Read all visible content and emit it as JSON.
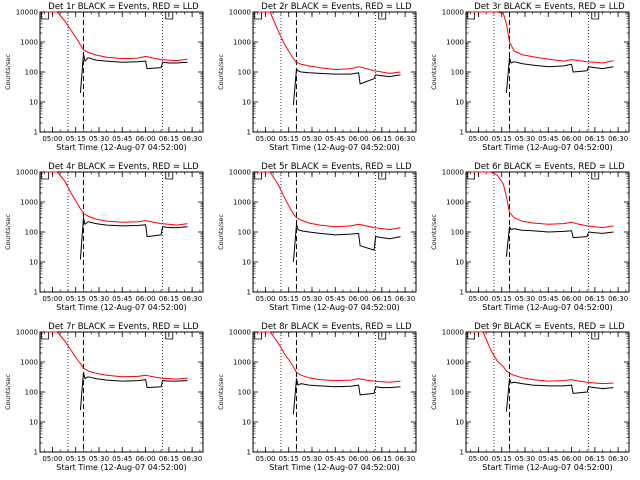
{
  "chart_data": [
    {
      "type": "line",
      "title": "Det 1r BLACK = Events, RED = LLD",
      "xlabel": "Start Time (12-Aug-07 04:52:00)",
      "ylabel": "Counts/sec",
      "yscale": "log",
      "ylim": [
        1,
        10000
      ],
      "x_ticks": [
        "05:00",
        "05:15",
        "05:30",
        "05:45",
        "06:00",
        "06:15",
        "06:30"
      ],
      "y_ticks": [
        "1",
        "10",
        "100",
        "1000",
        "10000"
      ],
      "markers": {
        "dotted": [
          "05:10",
          "06:11"
        ],
        "dashed": [
          "05:20"
        ]
      },
      "series": [
        {
          "color": "#ff0000",
          "x": [
            "04:55",
            "05:03",
            "05:08",
            "05:12",
            "05:16",
            "05:18",
            "05:20",
            "05:23",
            "05:28",
            "05:35",
            "05:45",
            "05:55",
            "06:00",
            "06:05",
            "06:10",
            "06:15",
            "06:20",
            "06:27"
          ],
          "values": [
            10000,
            10000,
            5000,
            2500,
            1200,
            800,
            550,
            450,
            370,
            310,
            280,
            290,
            330,
            290,
            260,
            250,
            240,
            270
          ]
        },
        {
          "color": "#000000",
          "x": [
            "05:18",
            "05:20",
            "05:21",
            "05:23",
            "05:28",
            "05:35",
            "05:45",
            "05:55",
            "06:00",
            "06:01",
            "06:10",
            "06:11",
            "06:15",
            "06:20",
            "06:27"
          ],
          "values": [
            20,
            400,
            230,
            300,
            250,
            230,
            210,
            220,
            230,
            130,
            140,
            210,
            200,
            200,
            210
          ]
        }
      ]
    },
    {
      "type": "line",
      "title": "Det 2r BLACK = Events, RED = LLD",
      "xlabel": "Start Time (12-Aug-07 04:52:00)",
      "ylabel": "Counts/sec",
      "yscale": "log",
      "ylim": [
        1,
        10000
      ],
      "x_ticks": [
        "05:00",
        "05:15",
        "05:30",
        "05:45",
        "06:00",
        "06:15",
        "06:30"
      ],
      "y_ticks": [
        "1",
        "10",
        "100",
        "1000",
        "10000"
      ],
      "markers": {
        "dotted": [
          "05:10",
          "06:11"
        ],
        "dashed": [
          "05:20"
        ]
      },
      "series": [
        {
          "color": "#ff0000",
          "x": [
            "04:55",
            "05:03",
            "05:08",
            "05:12",
            "05:16",
            "05:18",
            "05:20",
            "05:23",
            "05:28",
            "05:35",
            "05:45",
            "05:55",
            "06:00",
            "06:05",
            "06:10",
            "06:15",
            "06:20",
            "06:27"
          ],
          "values": [
            10000,
            10000,
            2500,
            900,
            400,
            280,
            210,
            180,
            160,
            140,
            120,
            130,
            150,
            130,
            110,
            100,
            90,
            100
          ]
        },
        {
          "color": "#000000",
          "x": [
            "05:18",
            "05:20",
            "05:21",
            "05:23",
            "05:28",
            "05:35",
            "05:45",
            "05:55",
            "06:00",
            "06:01",
            "06:10",
            "06:11",
            "06:15",
            "06:20",
            "06:27"
          ],
          "values": [
            8,
            130,
            110,
            100,
            95,
            90,
            85,
            85,
            95,
            40,
            60,
            80,
            75,
            70,
            80
          ]
        }
      ]
    },
    {
      "type": "line",
      "title": "Det 3r BLACK = Events, RED = LLD",
      "xlabel": "Start Time (12-Aug-07 04:52:00)",
      "ylabel": "Counts/sec",
      "yscale": "log",
      "ylim": [
        1,
        10000
      ],
      "x_ticks": [
        "05:00",
        "05:15",
        "05:30",
        "05:45",
        "06:00",
        "06:15",
        "06:30"
      ],
      "y_ticks": [
        "1",
        "10",
        "100",
        "1000",
        "10000"
      ],
      "markers": {
        "dotted": [
          "05:10",
          "06:11"
        ],
        "dashed": [
          "05:20"
        ]
      },
      "series": [
        {
          "color": "#ff0000",
          "x": [
            "04:55",
            "05:03",
            "05:08",
            "05:12",
            "05:16",
            "05:18",
            "05:20",
            "05:23",
            "05:28",
            "05:35",
            "05:45",
            "05:55",
            "06:00",
            "06:05",
            "06:10",
            "06:15",
            "06:20",
            "06:27"
          ],
          "values": [
            10000,
            10000,
            10000,
            10000,
            9000,
            4000,
            1000,
            500,
            380,
            320,
            270,
            230,
            260,
            240,
            220,
            210,
            200,
            240
          ]
        },
        {
          "color": "#000000",
          "x": [
            "05:18",
            "05:20",
            "05:21",
            "05:23",
            "05:28",
            "05:35",
            "05:45",
            "05:55",
            "06:00",
            "06:01",
            "06:10",
            "06:11",
            "06:15",
            "06:20",
            "06:27"
          ],
          "values": [
            20,
            300,
            200,
            220,
            190,
            170,
            150,
            160,
            180,
            100,
            110,
            150,
            140,
            130,
            150
          ]
        }
      ]
    },
    {
      "type": "line",
      "title": "Det 4r BLACK = Events, RED = LLD",
      "xlabel": "Start Time (12-Aug-07 04:52:00)",
      "ylabel": "Counts/sec",
      "yscale": "log",
      "ylim": [
        1,
        10000
      ],
      "x_ticks": [
        "05:00",
        "05:15",
        "05:30",
        "05:45",
        "06:00",
        "06:15",
        "06:30"
      ],
      "y_ticks": [
        "1",
        "10",
        "100",
        "1000",
        "10000"
      ],
      "markers": {
        "dotted": [
          "05:10",
          "06:11"
        ],
        "dashed": [
          "05:20"
        ]
      },
      "series": [
        {
          "color": "#ff0000",
          "x": [
            "04:55",
            "05:03",
            "05:08",
            "05:12",
            "05:16",
            "05:18",
            "05:20",
            "05:23",
            "05:28",
            "05:35",
            "05:45",
            "05:55",
            "06:00",
            "06:05",
            "06:10",
            "06:15",
            "06:20",
            "06:27"
          ],
          "values": [
            10000,
            10000,
            5000,
            2000,
            900,
            600,
            420,
            340,
            270,
            230,
            210,
            220,
            240,
            210,
            190,
            180,
            170,
            190
          ]
        },
        {
          "color": "#000000",
          "x": [
            "05:18",
            "05:20",
            "05:21",
            "05:23",
            "05:28",
            "05:35",
            "05:45",
            "05:55",
            "06:00",
            "06:01",
            "06:10",
            "06:11",
            "06:15",
            "06:20",
            "06:27"
          ],
          "values": [
            12,
            300,
            180,
            220,
            190,
            170,
            160,
            165,
            175,
            70,
            80,
            150,
            140,
            140,
            150
          ]
        }
      ]
    },
    {
      "type": "line",
      "title": "Det 5r BLACK = Events, RED = LLD",
      "xlabel": "Start Time (12-Aug-07 04:52:00)",
      "ylabel": "Counts/sec",
      "yscale": "log",
      "ylim": [
        1,
        10000
      ],
      "x_ticks": [
        "05:00",
        "05:15",
        "05:30",
        "05:45",
        "06:00",
        "06:15",
        "06:30"
      ],
      "y_ticks": [
        "1",
        "10",
        "100",
        "1000",
        "10000"
      ],
      "markers": {
        "dotted": [
          "05:10",
          "06:11"
        ],
        "dashed": [
          "05:20"
        ]
      },
      "series": [
        {
          "color": "#ff0000",
          "x": [
            "04:55",
            "05:03",
            "05:08",
            "05:12",
            "05:16",
            "05:18",
            "05:20",
            "05:23",
            "05:28",
            "05:35",
            "05:45",
            "05:55",
            "06:00",
            "06:05",
            "06:10",
            "06:15",
            "06:20",
            "06:27"
          ],
          "values": [
            10000,
            10000,
            4000,
            1500,
            600,
            400,
            300,
            250,
            200,
            170,
            150,
            160,
            180,
            160,
            140,
            130,
            120,
            140
          ]
        },
        {
          "color": "#000000",
          "x": [
            "05:18",
            "05:20",
            "05:21",
            "05:23",
            "05:28",
            "05:35",
            "05:45",
            "05:55",
            "06:00",
            "06:01",
            "06:10",
            "06:11",
            "06:15",
            "06:20",
            "06:27"
          ],
          "values": [
            10,
            180,
            120,
            110,
            100,
            90,
            80,
            85,
            90,
            35,
            25,
            70,
            65,
            60,
            70
          ]
        }
      ]
    },
    {
      "type": "line",
      "title": "Det 6r BLACK = Events, RED = LLD",
      "xlabel": "Start Time (12-Aug-07 04:52:00)",
      "ylabel": "Counts/sec",
      "yscale": "log",
      "ylim": [
        1,
        10000
      ],
      "x_ticks": [
        "05:00",
        "05:15",
        "05:30",
        "05:45",
        "06:00",
        "06:15",
        "06:30"
      ],
      "y_ticks": [
        "1",
        "10",
        "100",
        "1000",
        "10000"
      ],
      "markers": {
        "dotted": [
          "05:10",
          "06:11"
        ],
        "dashed": [
          "05:20"
        ]
      },
      "series": [
        {
          "color": "#ff0000",
          "x": [
            "04:55",
            "05:03",
            "05:08",
            "05:12",
            "05:16",
            "05:18",
            "05:20",
            "05:23",
            "05:28",
            "05:35",
            "05:45",
            "05:55",
            "06:00",
            "06:05",
            "06:10",
            "06:15",
            "06:20",
            "06:27"
          ],
          "values": [
            10000,
            10000,
            10000,
            8000,
            4000,
            1500,
            450,
            300,
            230,
            200,
            180,
            190,
            210,
            180,
            160,
            150,
            140,
            160
          ]
        },
        {
          "color": "#000000",
          "x": [
            "05:18",
            "05:20",
            "05:21",
            "05:23",
            "05:28",
            "05:35",
            "05:45",
            "05:55",
            "06:00",
            "06:01",
            "06:10",
            "06:11",
            "06:15",
            "06:20",
            "06:27"
          ],
          "values": [
            15,
            150,
            120,
            130,
            115,
            110,
            100,
            105,
            110,
            65,
            70,
            100,
            95,
            90,
            100
          ]
        }
      ]
    },
    {
      "type": "line",
      "title": "Det 7r BLACK = Events, RED = LLD",
      "xlabel": "Start Time (12-Aug-07 04:52:00)",
      "ylabel": "Counts/sec",
      "yscale": "log",
      "ylim": [
        1,
        10000
      ],
      "x_ticks": [
        "05:00",
        "05:15",
        "05:30",
        "05:45",
        "06:00",
        "06:15",
        "06:30"
      ],
      "y_ticks": [
        "1",
        "10",
        "100",
        "1000",
        "10000"
      ],
      "markers": {
        "dotted": [
          "05:10",
          "06:11"
        ],
        "dashed": [
          "05:20"
        ]
      },
      "series": [
        {
          "color": "#ff0000",
          "x": [
            "04:55",
            "05:03",
            "05:08",
            "05:12",
            "05:16",
            "05:18",
            "05:20",
            "05:23",
            "05:28",
            "05:35",
            "05:45",
            "05:55",
            "06:00",
            "06:05",
            "06:10",
            "06:15",
            "06:20",
            "06:27"
          ],
          "values": [
            10000,
            10000,
            5000,
            2500,
            1200,
            900,
            620,
            500,
            420,
            360,
            320,
            330,
            360,
            320,
            290,
            280,
            270,
            290
          ]
        },
        {
          "color": "#000000",
          "x": [
            "05:18",
            "05:20",
            "05:21",
            "05:23",
            "05:28",
            "05:35",
            "05:45",
            "05:55",
            "06:00",
            "06:01",
            "06:10",
            "06:11",
            "06:15",
            "06:20",
            "06:27"
          ],
          "values": [
            25,
            450,
            280,
            320,
            280,
            250,
            230,
            240,
            260,
            140,
            150,
            240,
            230,
            230,
            240
          ]
        }
      ]
    },
    {
      "type": "line",
      "title": "Det 8r BLACK = Events, RED = LLD",
      "xlabel": "Start Time (12-Aug-07 04:52:00)",
      "ylabel": "Counts/sec",
      "yscale": "log",
      "ylim": [
        1,
        10000
      ],
      "x_ticks": [
        "05:00",
        "05:15",
        "05:30",
        "05:45",
        "06:00",
        "06:15",
        "06:30"
      ],
      "y_ticks": [
        "1",
        "10",
        "100",
        "1000",
        "10000"
      ],
      "markers": {
        "dotted": [
          "05:10",
          "06:11"
        ],
        "dashed": [
          "05:20"
        ]
      },
      "series": [
        {
          "color": "#ff0000",
          "x": [
            "04:55",
            "05:03",
            "05:08",
            "05:12",
            "05:16",
            "05:18",
            "05:20",
            "05:23",
            "05:28",
            "05:35",
            "05:45",
            "05:55",
            "06:00",
            "06:05",
            "06:10",
            "06:15",
            "06:20",
            "06:27"
          ],
          "values": [
            10000,
            10000,
            4500,
            2000,
            1000,
            700,
            450,
            360,
            300,
            260,
            240,
            250,
            280,
            250,
            230,
            220,
            210,
            230
          ]
        },
        {
          "color": "#000000",
          "x": [
            "05:18",
            "05:20",
            "05:21",
            "05:23",
            "05:28",
            "05:35",
            "05:45",
            "05:55",
            "06:00",
            "06:01",
            "06:10",
            "06:11",
            "06:15",
            "06:20",
            "06:27"
          ],
          "values": [
            18,
            280,
            170,
            190,
            170,
            160,
            150,
            155,
            170,
            80,
            90,
            150,
            140,
            140,
            150
          ]
        }
      ]
    },
    {
      "type": "line",
      "title": "Det 9r BLACK = Events, RED = LLD",
      "xlabel": "Start Time (12-Aug-07 04:52:00)",
      "ylabel": "Counts/sec",
      "yscale": "log",
      "ylim": [
        1,
        10000
      ],
      "x_ticks": [
        "05:00",
        "05:15",
        "05:30",
        "05:45",
        "06:00",
        "06:15",
        "06:30"
      ],
      "y_ticks": [
        "1",
        "10",
        "100",
        "1000",
        "10000"
      ],
      "markers": {
        "dotted": [
          "05:10",
          "06:11"
        ],
        "dashed": [
          "05:20"
        ]
      },
      "series": [
        {
          "color": "#ff0000",
          "x": [
            "04:55",
            "05:03",
            "05:08",
            "05:12",
            "05:16",
            "05:18",
            "05:20",
            "05:23",
            "05:28",
            "05:35",
            "05:45",
            "05:55",
            "06:00",
            "06:05",
            "06:10",
            "06:15",
            "06:20",
            "06:27"
          ],
          "values": [
            10000,
            10000,
            2500,
            1100,
            700,
            500,
            420,
            360,
            300,
            260,
            230,
            240,
            260,
            230,
            210,
            200,
            190,
            200
          ]
        },
        {
          "color": "#000000",
          "x": [
            "05:18",
            "05:20",
            "05:21",
            "05:23",
            "05:28",
            "05:35",
            "05:45",
            "05:55",
            "06:00",
            "06:01",
            "06:10",
            "06:11",
            "06:15",
            "06:20",
            "06:27"
          ],
          "values": [
            22,
            280,
            200,
            210,
            190,
            170,
            160,
            160,
            170,
            90,
            100,
            150,
            140,
            130,
            140
          ]
        }
      ]
    }
  ]
}
